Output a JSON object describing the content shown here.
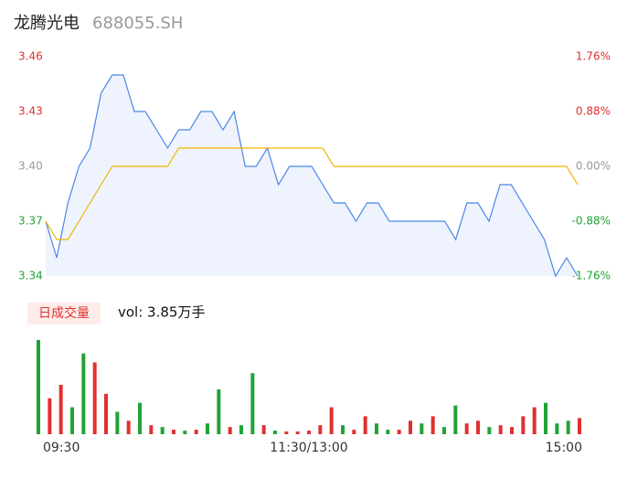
{
  "header": {
    "name": "龙腾光电",
    "code": "688055.SH"
  },
  "chart_data": [
    {
      "type": "line",
      "xlim": [
        0,
        240
      ],
      "ylim": [
        3.34,
        3.46
      ],
      "yticks": [
        3.34,
        3.37,
        {
          "value": 3.4,
          "label": "3.40"
        },
        3.43,
        3.46
      ],
      "ytick_colors": [
        "#21a336",
        "#21a336",
        "#999999",
        "#e03030",
        "#e03030"
      ],
      "y2lim": [
        -1.76,
        1.76
      ],
      "y2ticks": [
        {
          "value": -1.76,
          "label": "-1.76%"
        },
        {
          "value": -0.88,
          "label": "-0.88%"
        },
        {
          "value": 0,
          "label": "0.00%"
        },
        {
          "value": 0.88,
          "label": "0.88%"
        },
        {
          "value": 1.76,
          "label": "1.76%"
        }
      ],
      "y2tick_colors": [
        "#21a336",
        "#21a336",
        "#999999",
        "#e03030",
        "#e03030"
      ],
      "x": [
        0,
        5,
        10,
        15,
        20,
        25,
        30,
        35,
        40,
        45,
        50,
        55,
        60,
        65,
        70,
        75,
        80,
        85,
        90,
        95,
        100,
        105,
        110,
        115,
        120,
        125,
        130,
        135,
        140,
        145,
        150,
        155,
        160,
        165,
        170,
        175,
        180,
        185,
        190,
        195,
        200,
        205,
        210,
        215,
        220,
        225,
        230,
        235,
        240
      ],
      "series": [
        {
          "name": "price",
          "color": "#4a86e8",
          "values": [
            3.37,
            3.35,
            3.38,
            3.4,
            3.41,
            3.44,
            3.45,
            3.45,
            3.43,
            3.43,
            3.42,
            3.41,
            3.42,
            3.42,
            3.43,
            3.43,
            3.42,
            3.43,
            3.4,
            3.4,
            3.41,
            3.39,
            3.4,
            3.4,
            3.4,
            3.39,
            3.38,
            3.38,
            3.37,
            3.38,
            3.38,
            3.37,
            3.37,
            3.37,
            3.37,
            3.37,
            3.37,
            3.36,
            3.38,
            3.38,
            3.37,
            3.39,
            3.39,
            3.38,
            3.37,
            3.36,
            3.34,
            3.35,
            3.34
          ]
        },
        {
          "name": "avg",
          "color": "#f0b400",
          "values": [
            3.37,
            3.36,
            3.36,
            3.37,
            3.38,
            3.39,
            3.4,
            3.4,
            3.4,
            3.4,
            3.4,
            3.4,
            3.41,
            3.41,
            3.41,
            3.41,
            3.41,
            3.41,
            3.41,
            3.41,
            3.41,
            3.41,
            3.41,
            3.41,
            3.41,
            3.41,
            3.4,
            3.4,
            3.4,
            3.4,
            3.4,
            3.4,
            3.4,
            3.4,
            3.4,
            3.4,
            3.4,
            3.4,
            3.4,
            3.4,
            3.4,
            3.4,
            3.4,
            3.4,
            3.4,
            3.4,
            3.4,
            3.4,
            3.39
          ]
        }
      ]
    },
    {
      "type": "bar",
      "label": "日成交量",
      "volume_text": "vol: 3.85万手",
      "xlim": [
        0,
        240
      ],
      "ylim": [
        0,
        110
      ],
      "xticks": [
        {
          "value": 0,
          "label": "09:30"
        },
        {
          "value": 120,
          "label": "11:30/13:00"
        },
        {
          "value": 240,
          "label": "15:00"
        }
      ],
      "x": [
        0,
        5,
        10,
        15,
        20,
        25,
        30,
        35,
        40,
        45,
        50,
        55,
        60,
        65,
        70,
        75,
        80,
        85,
        90,
        95,
        100,
        105,
        110,
        115,
        120,
        125,
        130,
        135,
        140,
        145,
        150,
        155,
        160,
        165,
        170,
        175,
        180,
        185,
        190,
        195,
        200,
        205,
        210,
        215,
        220,
        225,
        230,
        235,
        240
      ],
      "values": [
        105,
        40,
        55,
        30,
        90,
        80,
        45,
        25,
        15,
        35,
        10,
        8,
        5,
        4,
        5,
        12,
        50,
        8,
        10,
        68,
        10,
        4,
        3,
        3,
        4,
        10,
        30,
        10,
        5,
        20,
        12,
        5,
        5,
        15,
        12,
        20,
        8,
        32,
        12,
        15,
        8,
        10,
        8,
        20,
        30,
        35,
        12,
        15,
        18
      ],
      "bar_colors": [
        "#21a336",
        "#e03030",
        "#e03030",
        "#21a336",
        "#21a336",
        "#e03030",
        "#e03030",
        "#21a336",
        "#e03030",
        "#21a336",
        "#e03030",
        "#21a336",
        "#e03030",
        "#21a336",
        "#e03030",
        "#21a336",
        "#21a336",
        "#e03030",
        "#21a336",
        "#21a336",
        "#e03030",
        "#21a336",
        "#e03030",
        "#e03030",
        "#e03030",
        "#e03030",
        "#e03030",
        "#21a336",
        "#e03030",
        "#e03030",
        "#21a336",
        "#21a336",
        "#e03030",
        "#e03030",
        "#21a336",
        "#e03030",
        "#21a336",
        "#21a336",
        "#e03030",
        "#e03030",
        "#21a336",
        "#e03030",
        "#e03030",
        "#e03030",
        "#e03030",
        "#21a336",
        "#21a336",
        "#21a336",
        "#e03030"
      ]
    }
  ]
}
